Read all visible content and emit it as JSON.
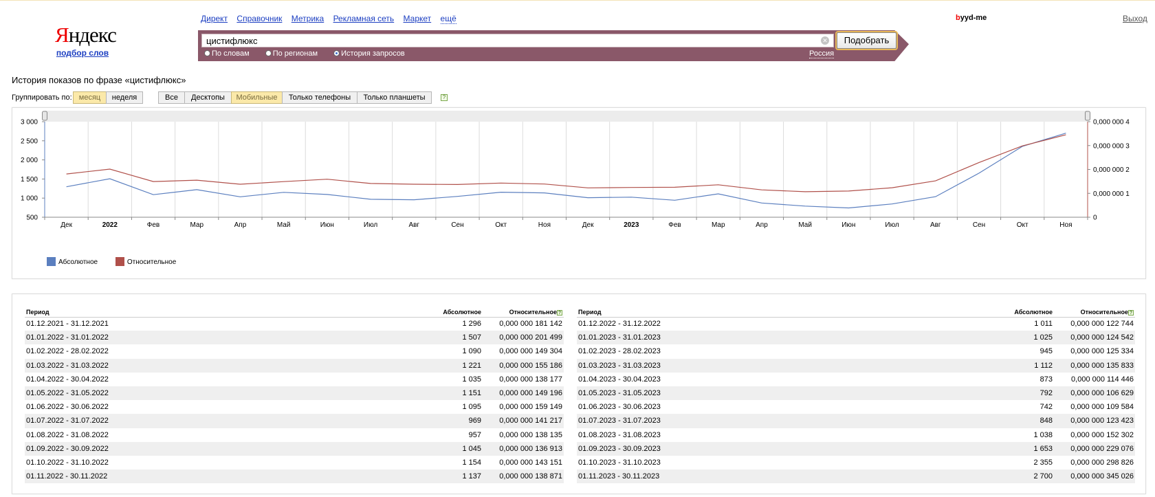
{
  "header": {
    "logo_first": "Я",
    "logo_rest": "ндекс",
    "logo_sub": "подбор слов",
    "services": [
      "Директ",
      "Справочник",
      "Метрика",
      "Рекламная сеть",
      "Маркет"
    ],
    "more": "ещё",
    "user_first": "b",
    "user_rest": "yyd-me",
    "logout": "Выход"
  },
  "search": {
    "query": "цистифлюкс",
    "button": "Подобрать",
    "modes": [
      "По словам",
      "По регионам",
      "История запросов"
    ],
    "selected_mode": "История запросов",
    "region": "Россия"
  },
  "page_title": "История показов по фразе «цистифлюкс»",
  "grouping": {
    "label": "Группировать по:",
    "options": [
      "месяц",
      "неделя"
    ],
    "selected": "месяц"
  },
  "devices": {
    "options": [
      "Все",
      "Десктопы",
      "Мобильные",
      "Только телефоны",
      "Только планшеты"
    ],
    "selected": "Мобильные"
  },
  "help_glyph": "?",
  "colors": {
    "absolute": "#5b7fbf",
    "relative": "#b0504a",
    "accent": "#fbe9a9",
    "search_bar": "#8a5869"
  },
  "chart_data": {
    "type": "line",
    "x": [
      "Дек",
      "2022",
      "Фев",
      "Мар",
      "Апр",
      "Май",
      "Июн",
      "Июл",
      "Авг",
      "Сен",
      "Окт",
      "Ноя",
      "Дек",
      "2023",
      "Фев",
      "Мар",
      "Апр",
      "Май",
      "Июн",
      "Июл",
      "Авг",
      "Сен",
      "Окт",
      "Ноя"
    ],
    "bold_ticks": [
      "2022",
      "2023"
    ],
    "series": [
      {
        "name": "Абсолютное",
        "axis": "left",
        "values": [
          1296,
          1507,
          1090,
          1221,
          1035,
          1151,
          1095,
          969,
          957,
          1045,
          1154,
          1137,
          1011,
          1025,
          945,
          1112,
          873,
          792,
          742,
          848,
          1038,
          1653,
          2355,
          2700
        ]
      },
      {
        "name": "Относительное",
        "axis": "right",
        "values": [
          1.81142e-07,
          2.01499e-07,
          1.49304e-07,
          1.55186e-07,
          1.38177e-07,
          1.49196e-07,
          1.59149e-07,
          1.41217e-07,
          1.38135e-07,
          1.36913e-07,
          1.43151e-07,
          1.38871e-07,
          1.22744e-07,
          1.24542e-07,
          1.25334e-07,
          1.35833e-07,
          1.14446e-07,
          1.06629e-07,
          1.09584e-07,
          1.23423e-07,
          1.52302e-07,
          2.29076e-07,
          2.98826e-07,
          3.45026e-07
        ]
      }
    ],
    "left_axis": {
      "ylim": [
        500,
        3000
      ],
      "ticks": [
        "3 000",
        "2 500",
        "2 000",
        "1 500",
        "1 000",
        "500"
      ]
    },
    "right_axis": {
      "ylim": [
        0,
        4e-07
      ],
      "ticks": [
        "0,000 000 4",
        "0,000 000 3",
        "0,000 000 2",
        "0,000 000 1",
        "0"
      ]
    },
    "grid": true,
    "legend_position": "bottom-left"
  },
  "table": {
    "headers": [
      "Период",
      "Абсолютное",
      "Относительное"
    ],
    "left_rows": [
      [
        "01.12.2021 - 31.12.2021",
        "1 296",
        "0,000 000 181 142"
      ],
      [
        "01.01.2022 - 31.01.2022",
        "1 507",
        "0,000 000 201 499"
      ],
      [
        "01.02.2022 - 28.02.2022",
        "1 090",
        "0,000 000 149 304"
      ],
      [
        "01.03.2022 - 31.03.2022",
        "1 221",
        "0,000 000 155 186"
      ],
      [
        "01.04.2022 - 30.04.2022",
        "1 035",
        "0,000 000 138 177"
      ],
      [
        "01.05.2022 - 31.05.2022",
        "1 151",
        "0,000 000 149 196"
      ],
      [
        "01.06.2022 - 30.06.2022",
        "1 095",
        "0,000 000 159 149"
      ],
      [
        "01.07.2022 - 31.07.2022",
        "969",
        "0,000 000 141 217"
      ],
      [
        "01.08.2022 - 31.08.2022",
        "957",
        "0,000 000 138 135"
      ],
      [
        "01.09.2022 - 30.09.2022",
        "1 045",
        "0,000 000 136 913"
      ],
      [
        "01.10.2022 - 31.10.2022",
        "1 154",
        "0,000 000 143 151"
      ],
      [
        "01.11.2022 - 30.11.2022",
        "1 137",
        "0,000 000 138 871"
      ]
    ],
    "right_rows": [
      [
        "01.12.2022 - 31.12.2022",
        "1 011",
        "0,000 000 122 744"
      ],
      [
        "01.01.2023 - 31.01.2023",
        "1 025",
        "0,000 000 124 542"
      ],
      [
        "01.02.2023 - 28.02.2023",
        "945",
        "0,000 000 125 334"
      ],
      [
        "01.03.2023 - 31.03.2023",
        "1 112",
        "0,000 000 135 833"
      ],
      [
        "01.04.2023 - 30.04.2023",
        "873",
        "0,000 000 114 446"
      ],
      [
        "01.05.2023 - 31.05.2023",
        "792",
        "0,000 000 106 629"
      ],
      [
        "01.06.2023 - 30.06.2023",
        "742",
        "0,000 000 109 584"
      ],
      [
        "01.07.2023 - 31.07.2023",
        "848",
        "0,000 000 123 423"
      ],
      [
        "01.08.2023 - 31.08.2023",
        "1 038",
        "0,000 000 152 302"
      ],
      [
        "01.09.2023 - 30.09.2023",
        "1 653",
        "0,000 000 229 076"
      ],
      [
        "01.10.2023 - 31.10.2023",
        "2 355",
        "0,000 000 298 826"
      ],
      [
        "01.11.2023 - 30.11.2023",
        "2 700",
        "0,000 000 345 026"
      ]
    ]
  }
}
